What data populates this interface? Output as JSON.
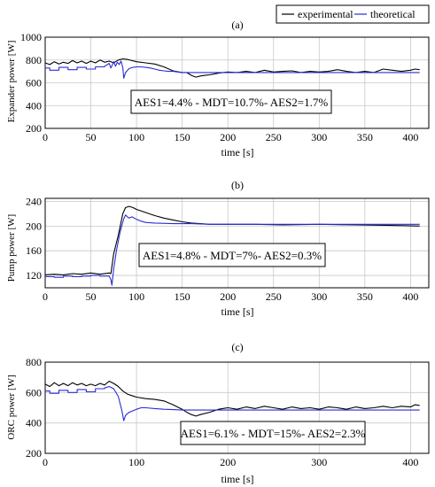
{
  "legend": {
    "entries": [
      {
        "label": "experimental",
        "color": "#000000"
      },
      {
        "label": "theoretical",
        "color": "#2b2bd6"
      }
    ]
  },
  "chart_data": [
    {
      "type": "line",
      "title": "(a)",
      "xlabel": "time [s]",
      "ylabel": "Expander power [W]",
      "xlim": [
        0,
        420
      ],
      "ylim": [
        200,
        1000
      ],
      "xticks": [
        0,
        50,
        100,
        150,
        200,
        250,
        300,
        350,
        400
      ],
      "yticks": [
        200,
        400,
        600,
        800,
        1000
      ],
      "grid": true,
      "annotation": "AES1=4.4% -  MDT=10.7%-  AES2=1.7%",
      "series": [
        {
          "name": "experimental",
          "color": "#000000",
          "points": [
            [
              0,
              775
            ],
            [
              5,
              760
            ],
            [
              10,
              785
            ],
            [
              15,
              765
            ],
            [
              20,
              780
            ],
            [
              25,
              770
            ],
            [
              30,
              795
            ],
            [
              35,
              775
            ],
            [
              40,
              790
            ],
            [
              45,
              770
            ],
            [
              50,
              790
            ],
            [
              55,
              775
            ],
            [
              60,
              800
            ],
            [
              65,
              780
            ],
            [
              70,
              790
            ],
            [
              75,
              775
            ],
            [
              80,
              800
            ],
            [
              85,
              810
            ],
            [
              90,
              805
            ],
            [
              100,
              785
            ],
            [
              110,
              775
            ],
            [
              120,
              765
            ],
            [
              130,
              740
            ],
            [
              140,
              705
            ],
            [
              150,
              690
            ],
            [
              155,
              690
            ],
            [
              160,
              665
            ],
            [
              165,
              650
            ],
            [
              170,
              660
            ],
            [
              175,
              665
            ],
            [
              180,
              670
            ],
            [
              190,
              685
            ],
            [
              200,
              695
            ],
            [
              210,
              690
            ],
            [
              220,
              700
            ],
            [
              230,
              690
            ],
            [
              240,
              710
            ],
            [
              250,
              695
            ],
            [
              260,
              700
            ],
            [
              270,
              705
            ],
            [
              280,
              690
            ],
            [
              290,
              700
            ],
            [
              300,
              695
            ],
            [
              310,
              700
            ],
            [
              320,
              715
            ],
            [
              330,
              700
            ],
            [
              340,
              690
            ],
            [
              350,
              700
            ],
            [
              360,
              690
            ],
            [
              370,
              720
            ],
            [
              380,
              710
            ],
            [
              390,
              700
            ],
            [
              400,
              710
            ],
            [
              405,
              720
            ],
            [
              410,
              715
            ]
          ]
        },
        {
          "name": "theoretical",
          "color": "#2b2bd6",
          "points": [
            [
              0,
              730
            ],
            [
              5,
              730
            ],
            [
              5,
              710
            ],
            [
              15,
              710
            ],
            [
              15,
              735
            ],
            [
              25,
              735
            ],
            [
              25,
              715
            ],
            [
              35,
              715
            ],
            [
              35,
              735
            ],
            [
              45,
              735
            ],
            [
              45,
              720
            ],
            [
              55,
              720
            ],
            [
              55,
              740
            ],
            [
              65,
              740
            ],
            [
              65,
              745
            ],
            [
              70,
              770
            ],
            [
              72,
              730
            ],
            [
              75,
              785
            ],
            [
              77,
              745
            ],
            [
              79,
              780
            ],
            [
              81,
              760
            ],
            [
              83,
              790
            ],
            [
              85,
              735
            ],
            [
              86,
              640
            ],
            [
              88,
              690
            ],
            [
              92,
              725
            ],
            [
              96,
              735
            ],
            [
              100,
              740
            ],
            [
              105,
              740
            ],
            [
              110,
              735
            ],
            [
              115,
              730
            ],
            [
              120,
              720
            ],
            [
              125,
              710
            ],
            [
              130,
              705
            ],
            [
              135,
              700
            ],
            [
              140,
              700
            ],
            [
              145,
              695
            ],
            [
              150,
              690
            ],
            [
              160,
              690
            ],
            [
              170,
              690
            ],
            [
              180,
              690
            ],
            [
              200,
              690
            ],
            [
              250,
              690
            ],
            [
              300,
              690
            ],
            [
              350,
              690
            ],
            [
              410,
              690
            ]
          ]
        }
      ]
    },
    {
      "type": "line",
      "title": "(b)",
      "xlabel": "time [s]",
      "ylabel": "Pump power [W]",
      "xlim": [
        0,
        420
      ],
      "ylim": [
        100,
        245
      ],
      "xticks": [
        0,
        50,
        100,
        150,
        200,
        250,
        300,
        350,
        400
      ],
      "yticks": [
        120,
        160,
        200,
        240
      ],
      "grid": true,
      "annotation": "AES1=4.8% -  MDT=7%-  AES2=0.3%",
      "series": [
        {
          "name": "experimental",
          "color": "#000000",
          "points": [
            [
              0,
              121
            ],
            [
              10,
              122
            ],
            [
              20,
              121
            ],
            [
              30,
              123
            ],
            [
              40,
              122
            ],
            [
              50,
              124
            ],
            [
              60,
              122
            ],
            [
              70,
              124
            ],
            [
              72,
              123
            ],
            [
              75,
              155
            ],
            [
              80,
              185
            ],
            [
              85,
              220
            ],
            [
              88,
              230
            ],
            [
              92,
              232
            ],
            [
              96,
              230
            ],
            [
              100,
              227
            ],
            [
              110,
              222
            ],
            [
              120,
              217
            ],
            [
              130,
              213
            ],
            [
              140,
              210
            ],
            [
              150,
              207
            ],
            [
              160,
              205
            ],
            [
              170,
              204
            ],
            [
              180,
              203
            ],
            [
              200,
              203
            ],
            [
              230,
              203
            ],
            [
              260,
              202
            ],
            [
              300,
              203
            ],
            [
              340,
              202
            ],
            [
              380,
              201
            ],
            [
              410,
              200
            ]
          ]
        },
        {
          "name": "theoretical",
          "color": "#2b2bd6",
          "points": [
            [
              0,
              118
            ],
            [
              10,
              118
            ],
            [
              10,
              117
            ],
            [
              20,
              117
            ],
            [
              20,
              119
            ],
            [
              30,
              119
            ],
            [
              30,
              118
            ],
            [
              40,
              118
            ],
            [
              40,
              119
            ],
            [
              50,
              119
            ],
            [
              50,
              120
            ],
            [
              60,
              120
            ],
            [
              60,
              119
            ],
            [
              70,
              119
            ],
            [
              72,
              113
            ],
            [
              73,
              104
            ],
            [
              75,
              130
            ],
            [
              78,
              160
            ],
            [
              82,
              190
            ],
            [
              86,
              212
            ],
            [
              88,
              218
            ],
            [
              90,
              215
            ],
            [
              92,
              213
            ],
            [
              95,
              215
            ],
            [
              100,
              211
            ],
            [
              105,
              208
            ],
            [
              110,
              206
            ],
            [
              120,
              205
            ],
            [
              140,
              204
            ],
            [
              160,
              204
            ],
            [
              180,
              203
            ],
            [
              200,
              203
            ],
            [
              250,
              203
            ],
            [
              300,
              203
            ],
            [
              350,
              203
            ],
            [
              410,
              203
            ]
          ]
        }
      ]
    },
    {
      "type": "line",
      "title": "(c)",
      "xlabel": "time [s]",
      "ylabel": "ORC power [W]",
      "xlim": [
        0,
        420
      ],
      "ylim": [
        200,
        800
      ],
      "xticks": [
        0,
        100,
        200,
        300,
        400
      ],
      "yticks": [
        200,
        400,
        600,
        800
      ],
      "grid": true,
      "annotation": "AES1=6.1% -  MDT=15%-  AES2=2.3%",
      "series": [
        {
          "name": "experimental",
          "color": "#000000",
          "points": [
            [
              0,
              655
            ],
            [
              5,
              640
            ],
            [
              10,
              665
            ],
            [
              15,
              645
            ],
            [
              20,
              660
            ],
            [
              25,
              645
            ],
            [
              30,
              665
            ],
            [
              35,
              650
            ],
            [
              40,
              660
            ],
            [
              45,
              645
            ],
            [
              50,
              655
            ],
            [
              55,
              645
            ],
            [
              60,
              660
            ],
            [
              65,
              650
            ],
            [
              70,
              675
            ],
            [
              75,
              660
            ],
            [
              80,
              640
            ],
            [
              85,
              610
            ],
            [
              90,
              590
            ],
            [
              95,
              580
            ],
            [
              100,
              570
            ],
            [
              110,
              560
            ],
            [
              120,
              555
            ],
            [
              130,
              545
            ],
            [
              140,
              520
            ],
            [
              150,
              490
            ],
            [
              155,
              470
            ],
            [
              160,
              455
            ],
            [
              165,
              445
            ],
            [
              170,
              455
            ],
            [
              180,
              470
            ],
            [
              190,
              490
            ],
            [
              200,
              500
            ],
            [
              210,
              490
            ],
            [
              220,
              505
            ],
            [
              230,
              495
            ],
            [
              240,
              510
            ],
            [
              250,
              500
            ],
            [
              260,
              490
            ],
            [
              270,
              505
            ],
            [
              280,
              495
            ],
            [
              290,
              500
            ],
            [
              300,
              490
            ],
            [
              310,
              505
            ],
            [
              320,
              500
            ],
            [
              330,
              490
            ],
            [
              340,
              505
            ],
            [
              350,
              495
            ],
            [
              360,
              500
            ],
            [
              370,
              510
            ],
            [
              380,
              500
            ],
            [
              390,
              510
            ],
            [
              400,
              505
            ],
            [
              405,
              520
            ],
            [
              410,
              515
            ]
          ]
        },
        {
          "name": "theoretical",
          "color": "#2b2bd6",
          "points": [
            [
              0,
              610
            ],
            [
              5,
              610
            ],
            [
              5,
              595
            ],
            [
              15,
              595
            ],
            [
              15,
              615
            ],
            [
              25,
              615
            ],
            [
              25,
              600
            ],
            [
              35,
              600
            ],
            [
              35,
              620
            ],
            [
              45,
              620
            ],
            [
              45,
              605
            ],
            [
              55,
              605
            ],
            [
              55,
              625
            ],
            [
              65,
              625
            ],
            [
              65,
              630
            ],
            [
              70,
              640
            ],
            [
              75,
              625
            ],
            [
              80,
              575
            ],
            [
              84,
              480
            ],
            [
              86,
              415
            ],
            [
              88,
              450
            ],
            [
              92,
              470
            ],
            [
              96,
              480
            ],
            [
              100,
              490
            ],
            [
              105,
              500
            ],
            [
              110,
              500
            ],
            [
              120,
              495
            ],
            [
              130,
              490
            ],
            [
              140,
              488
            ],
            [
              150,
              485
            ],
            [
              160,
              485
            ],
            [
              180,
              485
            ],
            [
              200,
              485
            ],
            [
              250,
              485
            ],
            [
              300,
              485
            ],
            [
              350,
              485
            ],
            [
              410,
              485
            ]
          ]
        }
      ]
    }
  ]
}
